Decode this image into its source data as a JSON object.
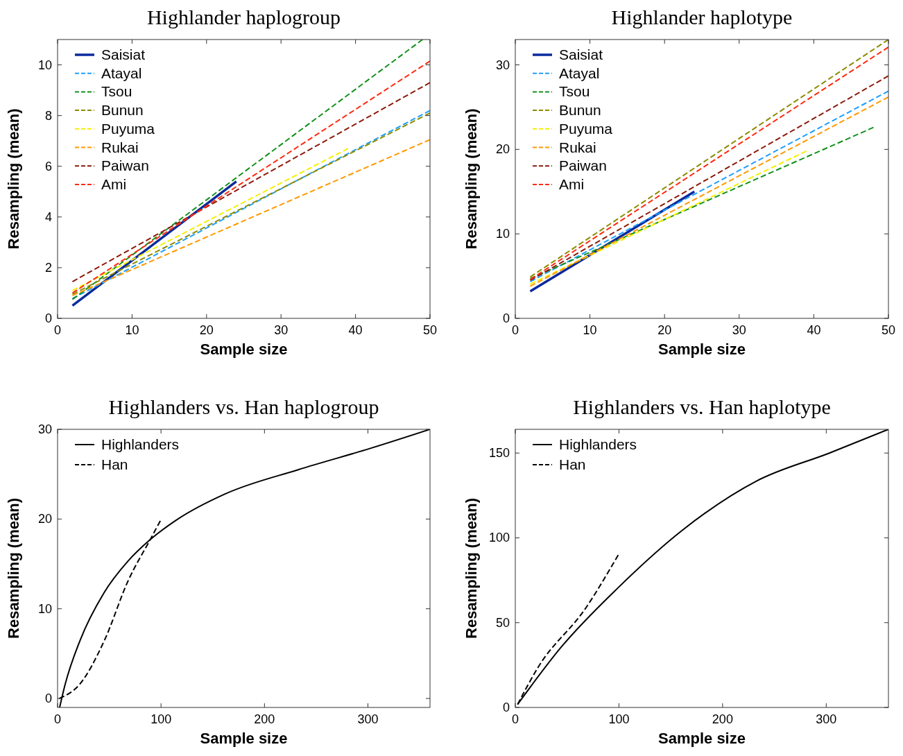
{
  "chart_data": [
    {
      "type": "line",
      "title": "Highlander haplogroup",
      "xlabel": "Sample size",
      "ylabel": "Resampling (mean)",
      "xlim": [
        0,
        50
      ],
      "ylim": [
        0,
        11
      ],
      "xticks": [
        0,
        10,
        20,
        30,
        40,
        50
      ],
      "yticks": [
        0,
        2,
        4,
        6,
        8,
        10
      ],
      "legend": "top left",
      "grid": false,
      "series": [
        {
          "name": "Saisiat",
          "color": "#0a2a9c",
          "line_style": "solid",
          "x": [
            2,
            24
          ],
          "values": [
            0.5,
            5.4
          ]
        },
        {
          "name": "Atayal",
          "color": "#1e9fff",
          "line_style": "dashed",
          "x": [
            2,
            50
          ],
          "values": [
            0.78,
            8.2
          ]
        },
        {
          "name": "Tsou",
          "color": "#12901a",
          "line_style": "dashed",
          "x": [
            2,
            49
          ],
          "values": [
            0.75,
            11
          ]
        },
        {
          "name": "Bunun",
          "color": "#8b8b00",
          "line_style": "dashed",
          "x": [
            2,
            50
          ],
          "values": [
            0.95,
            8.1
          ]
        },
        {
          "name": "Puyuma",
          "color": "#f5f000",
          "line_style": "dashed",
          "x": [
            2,
            39
          ],
          "values": [
            1.1,
            6.7
          ]
        },
        {
          "name": "Rukai",
          "color": "#ff9900",
          "line_style": "dashed",
          "x": [
            2,
            50
          ],
          "values": [
            0.9,
            7.05
          ]
        },
        {
          "name": "Paiwan",
          "color": "#8b1a0a",
          "line_style": "dashed",
          "x": [
            2,
            50
          ],
          "values": [
            1.45,
            9.3
          ]
        },
        {
          "name": "Ami",
          "color": "#ff2a10",
          "line_style": "dashed",
          "x": [
            2,
            50
          ],
          "values": [
            1.0,
            10.15
          ]
        }
      ]
    },
    {
      "type": "line",
      "title": "Highlander haplotype",
      "xlabel": "Sample size",
      "ylabel": "Resampling (mean)",
      "xlim": [
        0,
        50
      ],
      "ylim": [
        0,
        33
      ],
      "xticks": [
        0,
        10,
        20,
        30,
        40,
        50
      ],
      "yticks": [
        0,
        10,
        20,
        30
      ],
      "legend": "top left",
      "grid": false,
      "series": [
        {
          "name": "Saisiat",
          "color": "#0a2a9c",
          "line_style": "solid",
          "x": [
            2,
            24
          ],
          "values": [
            3.2,
            15.0
          ]
        },
        {
          "name": "Atayal",
          "color": "#1e9fff",
          "line_style": "dashed",
          "x": [
            2,
            50
          ],
          "values": [
            4.35,
            26.9
          ]
        },
        {
          "name": "Tsou",
          "color": "#12901a",
          "line_style": "dashed",
          "x": [
            2,
            48
          ],
          "values": [
            4.7,
            22.6
          ]
        },
        {
          "name": "Bunun",
          "color": "#8b8b00",
          "line_style": "dashed",
          "x": [
            2,
            50
          ],
          "values": [
            4.9,
            33
          ]
        },
        {
          "name": "Puyuma",
          "color": "#f5f000",
          "line_style": "dashed",
          "x": [
            2,
            39
          ],
          "values": [
            4.05,
            19.8
          ]
        },
        {
          "name": "Rukai",
          "color": "#ff9900",
          "line_style": "dashed",
          "x": [
            2,
            50
          ],
          "values": [
            3.8,
            26.2
          ]
        },
        {
          "name": "Paiwan",
          "color": "#8b1a0a",
          "line_style": "dashed",
          "x": [
            2,
            50
          ],
          "values": [
            4.5,
            28.7
          ]
        },
        {
          "name": "Ami",
          "color": "#ff2a10",
          "line_style": "dashed",
          "x": [
            2,
            50
          ],
          "values": [
            4.6,
            32.1
          ]
        }
      ]
    },
    {
      "type": "line",
      "title": "Highlanders vs. Han haplogroup",
      "xlabel": "Sample size",
      "ylabel": "Resampling (mean)",
      "xlim": [
        0,
        360
      ],
      "ylim": [
        -1,
        30
      ],
      "xticks": [
        0,
        100,
        200,
        300
      ],
      "yticks": [
        0,
        10,
        20,
        30
      ],
      "legend": "top left",
      "grid": false,
      "series": [
        {
          "name": "Highlanders",
          "color": "#000000",
          "line_style": "solid",
          "x": [
            2,
            7.4,
            21.5,
            45,
            68,
            89.5,
            115,
            162,
            232.6,
            303,
            360
          ],
          "values": [
            -1,
            1.6,
            6.4,
            11.8,
            15.3,
            17.7,
            19.9,
            22.8,
            25.5,
            27.9,
            30
          ]
        },
        {
          "name": "Han",
          "color": "#000000",
          "line_style": "dashed",
          "x": [
            1.5,
            21.5,
            45,
            68.5,
            89.5,
            99.3
          ],
          "values": [
            0,
            1.6,
            6.4,
            13.2,
            17.7,
            19.8
          ]
        }
      ]
    },
    {
      "type": "line",
      "title": "Highlanders vs. Han haplotype",
      "xlabel": "Sample size",
      "ylabel": "Resampling (mean)",
      "xlim": [
        0,
        360
      ],
      "ylim": [
        0,
        164
      ],
      "xticks": [
        0,
        100,
        200,
        300
      ],
      "yticks": [
        0,
        50,
        100,
        150
      ],
      "legend": "top left",
      "grid": false,
      "series": [
        {
          "name": "Highlanders",
          "color": "#000000",
          "line_style": "solid",
          "x": [
            2.2,
            45,
            99,
            162,
            232.7,
            303,
            360
          ],
          "values": [
            1.8,
            36.1,
            70.5,
            104.9,
            133.5,
            150,
            164
          ]
        },
        {
          "name": "Han",
          "color": "#000000",
          "line_style": "dashed",
          "x": [
            2.2,
            21.5,
            68.4,
            99.3
          ],
          "values": [
            1.8,
            23.2,
            59,
            89.9
          ]
        }
      ]
    }
  ]
}
